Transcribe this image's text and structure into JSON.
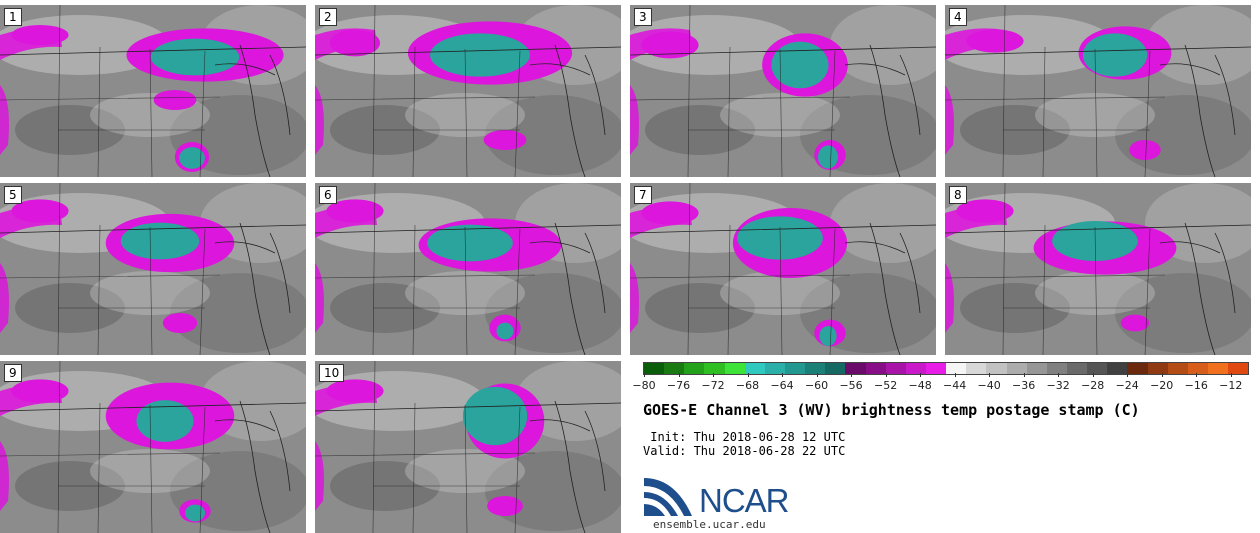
{
  "figure": {
    "title": "GOES-E Channel 3 (WV) brightness temp postage stamp (C)",
    "init_label": " Init: Thu 2018-06-28 12 UTC",
    "valid_label": "Valid: Thu 2018-06-28 22 UTC",
    "logo_text": "NCAR",
    "logo_url": "ensemble.ucar.edu",
    "logo_color": "#1e4e8c"
  },
  "colorbar": {
    "min": -80,
    "max": -10,
    "tick_labels": [
      "-80",
      "-76",
      "-72",
      "-68",
      "-64",
      "-60",
      "-56",
      "-52",
      "-48",
      "-44",
      "-40",
      "-36",
      "-32",
      "-28",
      "-24",
      "-20",
      "-16",
      "-12"
    ],
    "colors": [
      "#0a5e0a",
      "#1a7a12",
      "#24a11a",
      "#2fbf22",
      "#3ee33a",
      "#30c9c0",
      "#2ab0a8",
      "#229890",
      "#1b8078",
      "#146a62",
      "#6a0a6a",
      "#880e88",
      "#a814a8",
      "#c81ac8",
      "#e81ee8",
      "#f5f5f5",
      "#d8d8d8",
      "#c2c2c2",
      "#acacac",
      "#969696",
      "#808080",
      "#6a6a6a",
      "#555555",
      "#404040",
      "#6b2a0e",
      "#8f3a12",
      "#b44c16",
      "#d75e1a",
      "#f0701e",
      "#e04a10"
    ]
  },
  "panels": [
    {
      "id": "1",
      "label": "1"
    },
    {
      "id": "2",
      "label": "2"
    },
    {
      "id": "3",
      "label": "3"
    },
    {
      "id": "4",
      "label": "4"
    },
    {
      "id": "5",
      "label": "5"
    },
    {
      "id": "6",
      "label": "6"
    },
    {
      "id": "7",
      "label": "7"
    },
    {
      "id": "8",
      "label": "8"
    },
    {
      "id": "9",
      "label": "9"
    },
    {
      "id": "10",
      "label": "10"
    }
  ],
  "map_colors": {
    "background": "#8c8c8c",
    "light_gray": "#c8c8c8",
    "dark_gray": "#5e5e5e",
    "cold_cloud": "#dc16dc",
    "very_cold": "#2aa49c",
    "boundary": "#222222"
  }
}
